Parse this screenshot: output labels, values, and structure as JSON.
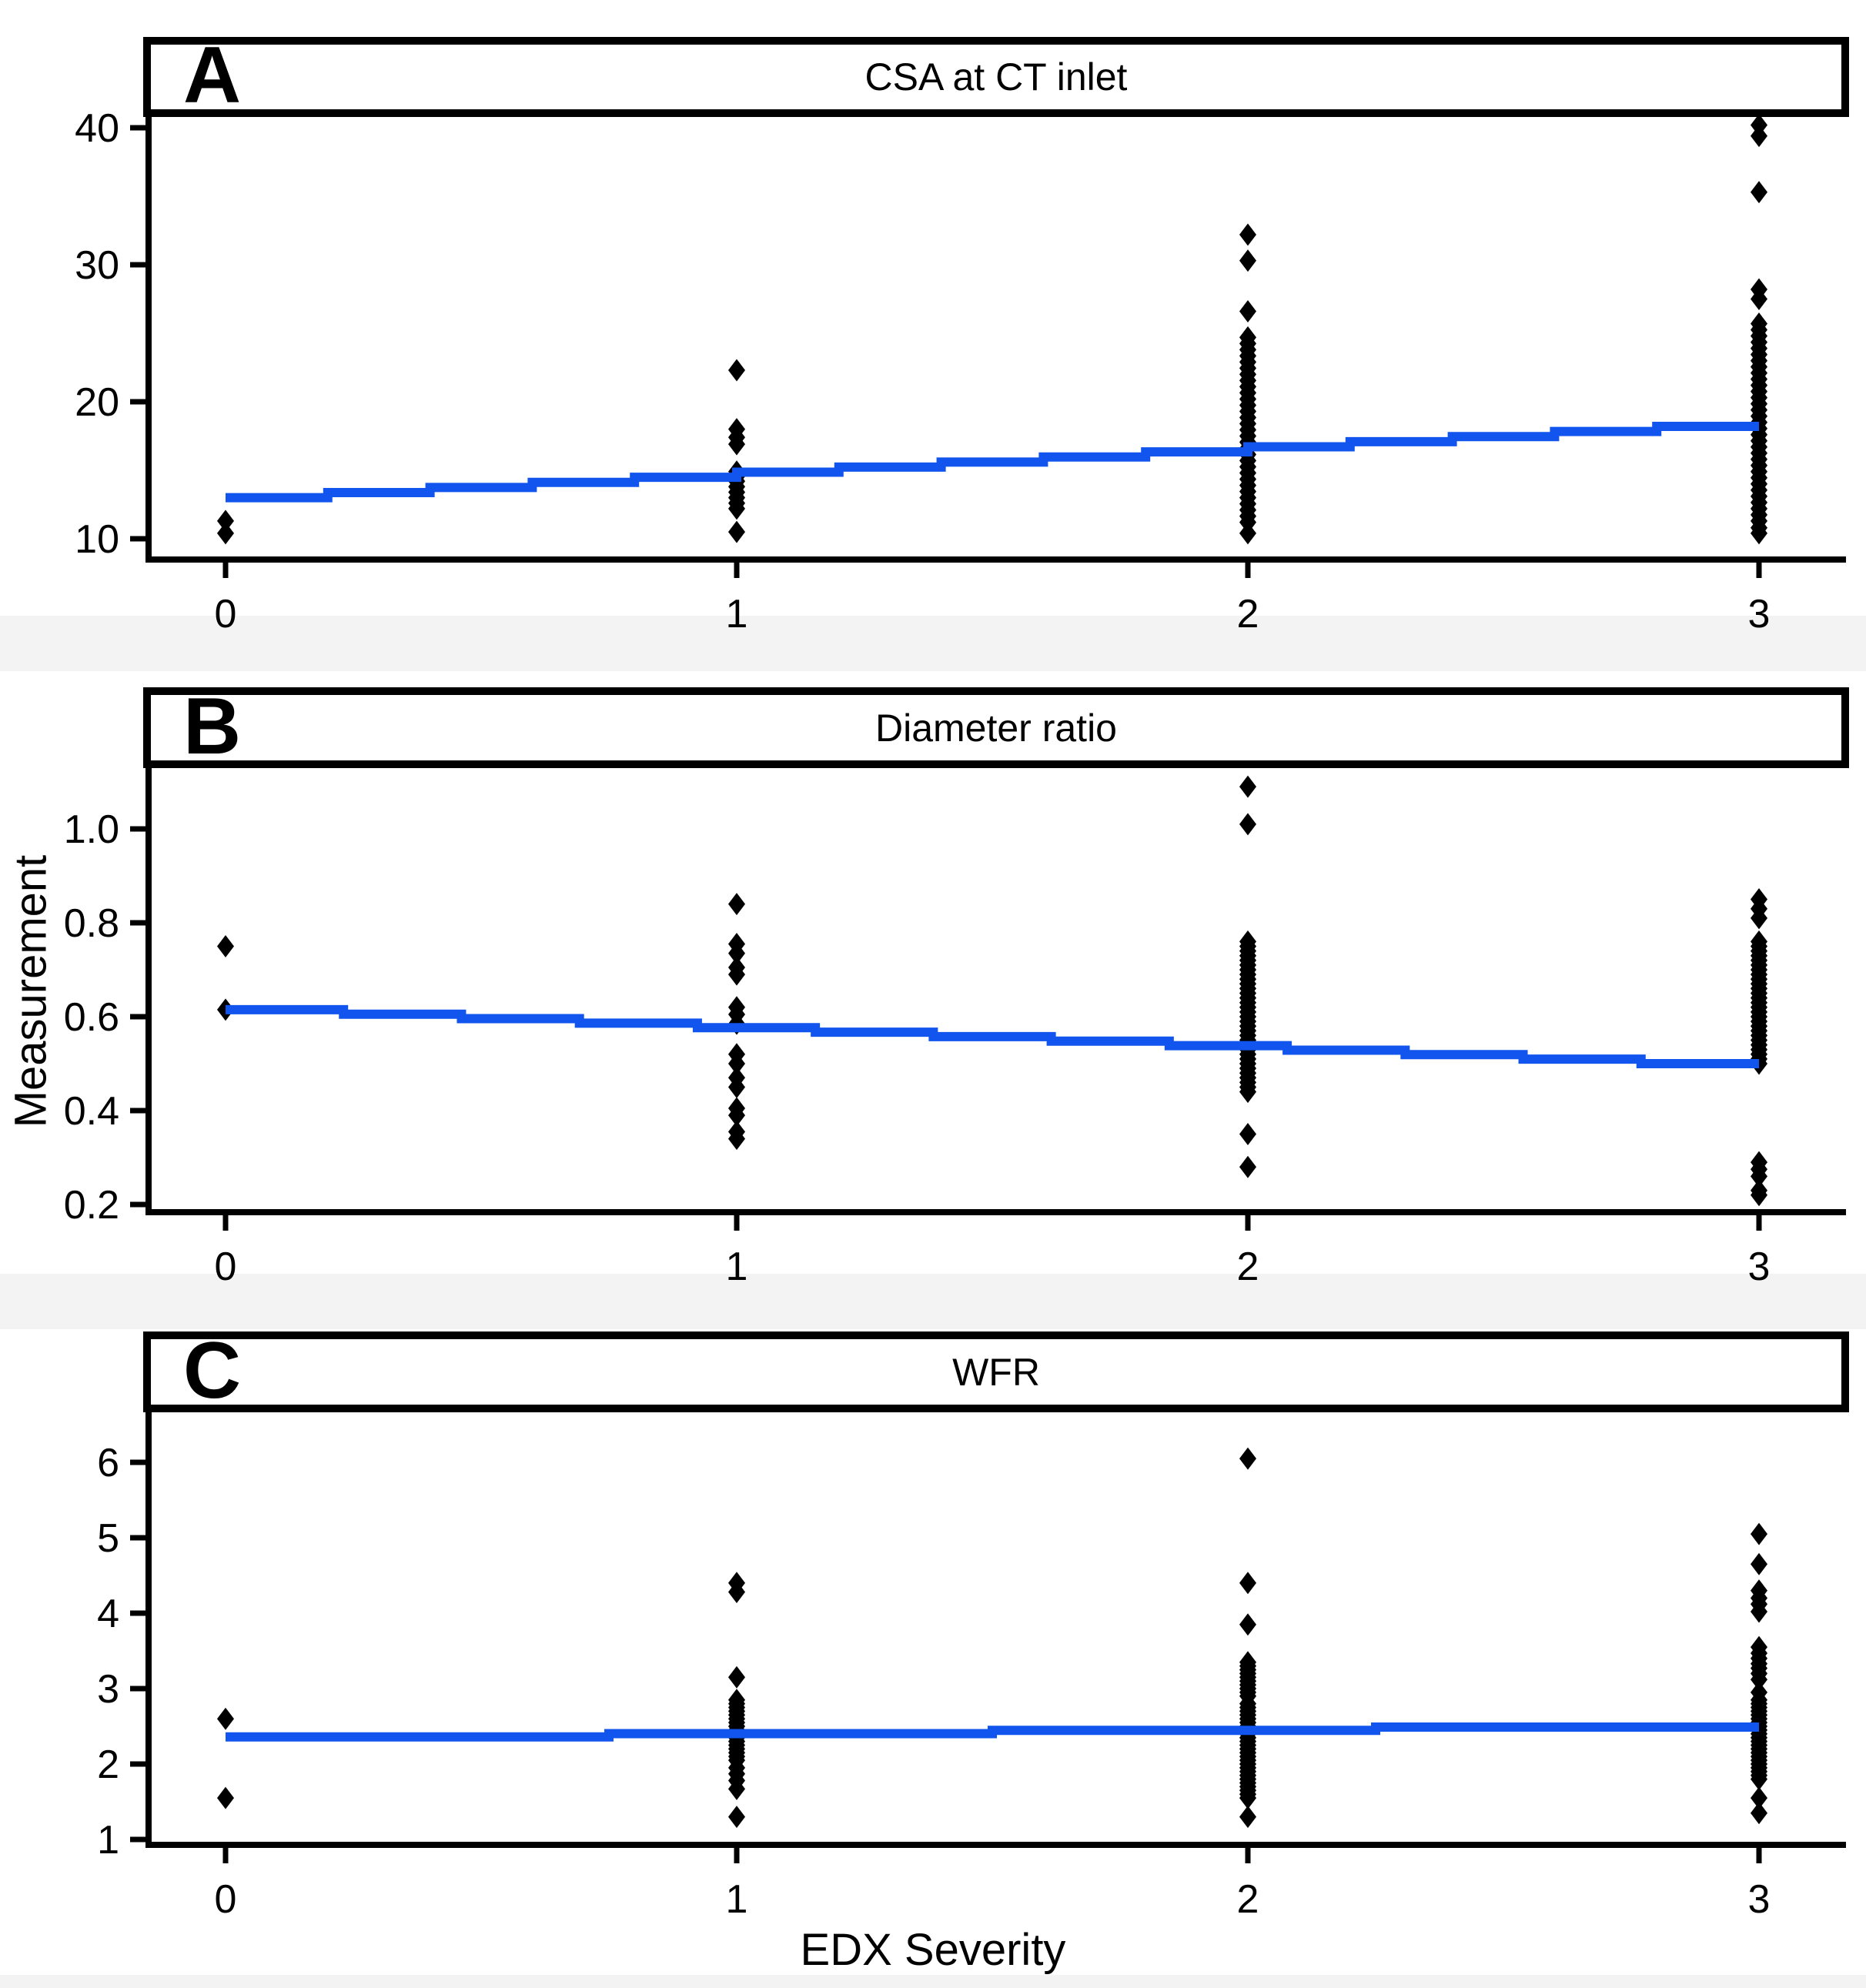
{
  "figure": {
    "background": "#ffffff",
    "band_color": "#f3f3f4",
    "accent_blue": "#1155ee",
    "point_color": "#000000",
    "x_axis_title": "EDX Severity",
    "y_axis_title": "Measurement"
  },
  "chart_data": [
    {
      "type": "scatter",
      "panel_label": "A",
      "title": "CSA at CT inlet",
      "xlabel": "EDX Severity",
      "x_categories": [
        "0",
        "1",
        "2",
        "3"
      ],
      "y_ticks": [
        10,
        20,
        30,
        40
      ],
      "ylim": [
        8.5,
        40.8
      ],
      "legend": "none",
      "grid": false,
      "points_by_severity": {
        "0": [
          11.3,
          10.4
        ],
        "1": [
          22.3,
          18.0,
          17.4,
          16.9,
          14.9,
          14.55,
          14.2,
          13.8,
          13.4,
          13.0,
          12.6,
          12.2,
          10.5
        ],
        "2": [
          32.2,
          30.3,
          26.6,
          24.7,
          24.25,
          23.8,
          23.35,
          22.9,
          22.45,
          22.0,
          21.55,
          21.1,
          20.65,
          20.2,
          19.75,
          19.3,
          18.85,
          18.4,
          17.95,
          17.5,
          17.05,
          16.6,
          16.15,
          15.7,
          15.25,
          14.8,
          14.35,
          13.9,
          13.45,
          13.0,
          12.55,
          12.1,
          11.65,
          11.2,
          10.4
        ],
        "3": [
          40.2,
          39.4,
          35.3,
          28.2,
          27.5,
          25.7,
          25.25,
          24.8,
          24.35,
          23.9,
          23.45,
          23.0,
          22.55,
          22.1,
          21.65,
          21.2,
          20.75,
          20.3,
          19.85,
          19.4,
          18.95,
          18.5,
          18.05,
          17.6,
          17.15,
          16.7,
          16.25,
          15.8,
          15.35,
          14.9,
          14.45,
          14.0,
          13.55,
          13.1,
          12.65,
          12.2,
          11.75,
          11.3,
          10.8,
          10.4
        ]
      },
      "trend_line": {
        "start": 13.0,
        "end": 18.2,
        "color": "#1155ee"
      }
    },
    {
      "type": "scatter",
      "panel_label": "B",
      "title": "Diameter ratio",
      "xlabel": "EDX Severity",
      "ylabel": "Measurement",
      "x_categories": [
        "0",
        "1",
        "2",
        "3"
      ],
      "y_ticks": [
        0.2,
        0.4,
        0.6,
        0.8,
        1.0
      ],
      "ylim": [
        0.18,
        1.13
      ],
      "legend": "none",
      "grid": false,
      "points_by_severity": {
        "0": [
          0.75,
          0.615
        ],
        "1": [
          0.84,
          0.755,
          0.735,
          0.705,
          0.69,
          0.62,
          0.605,
          0.585,
          0.52,
          0.5,
          0.47,
          0.45,
          0.405,
          0.39,
          0.355,
          0.34
        ],
        "2": [
          1.09,
          1.01,
          0.76,
          0.75,
          0.74,
          0.73,
          0.72,
          0.71,
          0.7,
          0.69,
          0.68,
          0.67,
          0.66,
          0.65,
          0.64,
          0.63,
          0.62,
          0.61,
          0.6,
          0.59,
          0.58,
          0.57,
          0.56,
          0.55,
          0.54,
          0.53,
          0.52,
          0.51,
          0.5,
          0.49,
          0.48,
          0.47,
          0.46,
          0.45,
          0.44,
          0.35,
          0.28
        ],
        "3": [
          0.85,
          0.83,
          0.81,
          0.76,
          0.75,
          0.74,
          0.73,
          0.72,
          0.71,
          0.7,
          0.69,
          0.68,
          0.67,
          0.66,
          0.65,
          0.64,
          0.63,
          0.62,
          0.61,
          0.6,
          0.59,
          0.58,
          0.57,
          0.56,
          0.55,
          0.54,
          0.53,
          0.52,
          0.51,
          0.5,
          0.29,
          0.275,
          0.26,
          0.23,
          0.22
        ]
      },
      "trend_line": {
        "start": 0.615,
        "end": 0.5,
        "color": "#1155ee"
      }
    },
    {
      "type": "scatter",
      "panel_label": "C",
      "title": "WFR",
      "xlabel": "EDX Severity",
      "x_categories": [
        "0",
        "1",
        "2",
        "3"
      ],
      "y_ticks": [
        1,
        2,
        3,
        4,
        5,
        6
      ],
      "ylim": [
        0.93,
        6.65
      ],
      "legend": "none",
      "grid": false,
      "points_by_severity": {
        "0": [
          2.6,
          1.55
        ],
        "1": [
          4.4,
          4.28,
          3.15,
          2.85,
          2.8,
          2.75,
          2.7,
          2.65,
          2.6,
          2.55,
          2.5,
          2.45,
          2.4,
          2.35,
          2.3,
          2.25,
          2.2,
          2.15,
          2.1,
          2.05,
          1.95,
          1.87,
          1.78,
          1.67,
          1.3
        ],
        "2": [
          6.05,
          4.4,
          3.85,
          3.35,
          3.3,
          3.25,
          3.2,
          3.15,
          3.1,
          3.05,
          3.0,
          2.95,
          2.9,
          2.8,
          2.75,
          2.7,
          2.65,
          2.6,
          2.55,
          2.5,
          2.45,
          2.4,
          2.35,
          2.3,
          2.25,
          2.2,
          2.15,
          2.1,
          2.05,
          2.0,
          1.95,
          1.9,
          1.85,
          1.8,
          1.75,
          1.7,
          1.65,
          1.6,
          1.55,
          1.3
        ],
        "3": [
          5.05,
          4.65,
          4.3,
          4.2,
          4.12,
          4.02,
          3.55,
          3.47,
          3.4,
          3.33,
          3.27,
          3.2,
          3.12,
          2.95,
          2.85,
          2.8,
          2.75,
          2.7,
          2.65,
          2.6,
          2.55,
          2.5,
          2.45,
          2.4,
          2.35,
          2.3,
          2.25,
          2.2,
          2.15,
          2.1,
          2.05,
          2.0,
          1.95,
          1.9,
          1.85,
          1.8,
          1.55,
          1.35
        ],
        "3_extra": []
      },
      "trend_line": {
        "start": 2.36,
        "end": 2.49,
        "color": "#1155ee"
      }
    }
  ]
}
